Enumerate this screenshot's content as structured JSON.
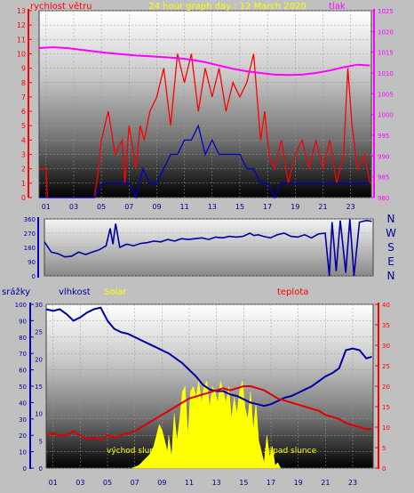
{
  "chart_data": [
    {
      "type": "line",
      "title": "24 hour graph day : 12 March 2020",
      "ylabel_left": "rychlost větru",
      "ylabel_right": "tlak",
      "x_tick_labels": [
        "01",
        "03",
        "05",
        "07",
        "09",
        "11",
        "13",
        "15",
        "17",
        "19",
        "21",
        "23"
      ],
      "y_left_ticks": [
        0,
        1,
        2,
        3,
        4,
        5,
        6,
        7,
        8,
        9,
        10,
        11,
        12,
        13
      ],
      "y_left_lim": [
        0,
        13
      ],
      "y_right_ticks": [
        980,
        985,
        990,
        995,
        1000,
        1005,
        1010,
        1015,
        1020,
        1025
      ],
      "y_right_lim": [
        980,
        1025
      ],
      "series": [
        {
          "role": "wind_gust",
          "color": "#ff0000",
          "x": [
            0.0,
            0.5,
            0.6,
            1.0,
            2.0,
            3.0,
            4.0,
            4.3,
            4.5,
            5.0,
            5.5,
            6.0,
            6.2,
            6.5,
            7.0,
            7.3,
            7.6,
            8.0,
            8.5,
            9.0,
            9.5,
            10.0,
            10.5,
            11.0,
            11.5,
            12.0,
            12.5,
            13.0,
            13.5,
            14.0,
            14.5,
            15.0,
            15.5,
            16.0,
            16.3,
            16.6,
            17.0,
            17.5,
            18.0,
            18.5,
            19.0,
            19.5,
            20.0,
            20.5,
            21.0,
            21.5,
            22.0,
            22.3,
            22.6,
            23.0,
            23.5,
            23.9
          ],
          "values": [
            2,
            2,
            0,
            0,
            0,
            0,
            0,
            2,
            4,
            6,
            3,
            4,
            1,
            5,
            2,
            5,
            4,
            6,
            7,
            9,
            5,
            10,
            8,
            10,
            6,
            9,
            7,
            9,
            6,
            8,
            7,
            8,
            10,
            4,
            6,
            3,
            2,
            4,
            1,
            3,
            4,
            2,
            4,
            2,
            4,
            1,
            3,
            9,
            5,
            2,
            3,
            1
          ]
        },
        {
          "role": "wind_average",
          "color": "#0000c8",
          "x": [
            0.0,
            1.0,
            2.0,
            3.0,
            4.0,
            4.6,
            5.0,
            5.5,
            6.0,
            6.5,
            7.0,
            7.5,
            8.0,
            8.5,
            9.0,
            9.5,
            10.0,
            10.5,
            11.0,
            11.5,
            12.0,
            12.5,
            13.0,
            13.5,
            14.0,
            14.5,
            15.0,
            15.5,
            16.0,
            16.5,
            17.0,
            17.5,
            18.0,
            18.5,
            19.0,
            19.5,
            20.0,
            20.5,
            21.0,
            21.5,
            22.0,
            22.5,
            23.0,
            23.5,
            23.9
          ],
          "values": [
            0,
            0,
            0,
            0,
            0,
            1,
            1,
            1,
            1,
            1,
            0,
            2,
            1,
            1,
            2,
            3,
            3,
            4,
            4,
            5,
            3,
            4,
            3,
            3,
            3,
            3,
            2,
            2,
            1,
            1,
            0,
            1,
            1,
            1,
            1,
            1,
            1,
            1,
            1,
            1,
            1,
            1,
            1,
            1,
            1
          ]
        },
        {
          "role": "pressure",
          "color": "#ff00ff",
          "axis": "right",
          "x": [
            0,
            1,
            2,
            3,
            4,
            5,
            6,
            7,
            8,
            9,
            10,
            11,
            12,
            13,
            14,
            15,
            16,
            17,
            18,
            19,
            20,
            21,
            22,
            23,
            23.9
          ],
          "values": [
            1016,
            1016.2,
            1016,
            1015.6,
            1015.2,
            1014.8,
            1014.5,
            1014.2,
            1014,
            1013.8,
            1013.6,
            1013.2,
            1012.6,
            1011.8,
            1011,
            1010.4,
            1010,
            1009.6,
            1009.5,
            1009.6,
            1010,
            1010.6,
            1011.4,
            1012,
            1011.8
          ]
        }
      ]
    },
    {
      "type": "line",
      "y_ticks": [
        0,
        90,
        180,
        270,
        360
      ],
      "y_lim": [
        0,
        360
      ],
      "compass_labels": [
        "N",
        "W",
        "S",
        "E",
        "N"
      ],
      "series": [
        {
          "role": "wind_direction",
          "color": "#0000a0",
          "x": [
            0.0,
            0.5,
            1.0,
            1.5,
            2.0,
            2.5,
            3.0,
            3.5,
            4.0,
            4.5,
            4.8,
            5.0,
            5.2,
            5.5,
            6.0,
            6.5,
            7.0,
            7.5,
            8.0,
            8.5,
            9.0,
            9.5,
            10.0,
            10.5,
            11.0,
            11.5,
            12.0,
            12.5,
            13.0,
            13.5,
            14.0,
            14.5,
            15.0,
            15.3,
            15.6,
            16.0,
            16.5,
            17.0,
            17.5,
            18.0,
            18.5,
            19.0,
            19.5,
            20.0,
            20.5,
            20.8,
            21.0,
            21.3,
            21.6,
            22.0,
            22.3,
            22.6,
            23.0,
            23.5,
            23.9
          ],
          "values": [
            215,
            150,
            140,
            120,
            125,
            150,
            135,
            150,
            165,
            190,
            300,
            200,
            330,
            180,
            200,
            190,
            205,
            210,
            220,
            215,
            230,
            220,
            235,
            230,
            235,
            240,
            230,
            245,
            240,
            250,
            245,
            250,
            270,
            255,
            260,
            250,
            240,
            260,
            270,
            250,
            245,
            260,
            240,
            265,
            270,
            0,
            340,
            30,
            350,
            20,
            360,
            0,
            340,
            350,
            345
          ]
        }
      ]
    },
    {
      "type": "area",
      "ylabel_left": "srážky",
      "ylabel_mid": "vlhkost",
      "ylabel_solar": "Solar",
      "ylabel_right": "teplota",
      "sunrise_label": "východ slunce",
      "sunset_label": "západ slunce",
      "x_tick_labels": [
        "01",
        "03",
        "05",
        "07",
        "09",
        "11",
        "13",
        "15",
        "17",
        "19",
        "21",
        "23"
      ],
      "y_left_ticks": [
        0,
        10,
        20,
        30,
        40,
        50,
        60,
        70,
        80,
        90,
        100
      ],
      "y_left_lim": [
        0,
        100
      ],
      "y_mid_ticks": [
        0,
        5,
        10,
        15,
        20,
        25,
        30
      ],
      "y_mid_lim": [
        0,
        30
      ],
      "y_right_ticks": [
        0,
        5,
        10,
        15,
        20,
        25,
        30,
        35,
        40
      ],
      "y_right_lim": [
        0,
        40
      ],
      "series": [
        {
          "role": "humidity",
          "color": "#0000a0",
          "axis": "left",
          "x": [
            0,
            0.5,
            1,
            1.5,
            2,
            2.5,
            3,
            3.5,
            4,
            4.5,
            5,
            5.5,
            6,
            6.5,
            7,
            7.5,
            8,
            8.5,
            9,
            9.5,
            10,
            10.5,
            11,
            11.5,
            12,
            12.5,
            13,
            13.5,
            14,
            14.5,
            15,
            15.5,
            16,
            16.5,
            17,
            17.5,
            18,
            18.5,
            19,
            19.5,
            20,
            20.5,
            21,
            21.5,
            22,
            22.5,
            23,
            23.5,
            23.9
          ],
          "values": [
            97,
            96,
            97,
            94,
            90,
            92,
            95,
            97,
            98,
            90,
            85,
            83,
            82,
            80,
            78,
            76,
            74,
            72,
            70,
            67,
            64,
            60,
            56,
            51,
            48,
            47,
            47,
            45,
            44,
            42,
            40,
            39,
            38,
            39,
            41,
            43,
            44,
            46,
            48,
            50,
            53,
            56,
            58,
            61,
            72,
            73,
            72,
            67,
            68
          ]
        },
        {
          "role": "temperature",
          "color": "#e00000",
          "axis": "right",
          "x": [
            0,
            0.5,
            1,
            1.5,
            2,
            2.5,
            3,
            3.5,
            4,
            4.5,
            5,
            5.5,
            6,
            6.5,
            7,
            7.5,
            8,
            8.5,
            9,
            9.5,
            10,
            10.5,
            11,
            11.5,
            12,
            12.5,
            13,
            13.5,
            14,
            14.5,
            15,
            15.5,
            16,
            16.5,
            17,
            17.5,
            18,
            18.5,
            19,
            19.5,
            20,
            20.5,
            21,
            21.5,
            22,
            22.5,
            23,
            23.5,
            23.9
          ],
          "values": [
            8,
            8.5,
            8,
            8,
            9,
            8,
            7,
            7.5,
            7,
            8,
            7.5,
            8,
            8.5,
            9,
            10,
            11,
            12,
            13,
            14,
            15,
            16,
            17,
            17.5,
            18,
            18.5,
            19,
            19.5,
            19,
            19.5,
            20,
            20,
            19.5,
            19,
            18,
            17,
            16.5,
            16,
            15.5,
            15,
            14.5,
            14,
            13,
            12.5,
            12,
            11,
            10.5,
            10,
            9.5,
            9.5
          ]
        },
        {
          "role": "solar",
          "color": "#ffff00",
          "axis": "mid",
          "x": [
            6.3,
            6.8,
            7.2,
            7.6,
            7.9,
            8.1,
            8.3,
            8.5,
            8.7,
            8.9,
            9.0,
            9.2,
            9.4,
            9.6,
            9.8,
            10.0,
            10.2,
            10.4,
            10.6,
            10.8,
            11.0,
            11.2,
            11.4,
            11.6,
            11.8,
            12.0,
            12.2,
            12.4,
            12.6,
            12.8,
            13.0,
            13.2,
            13.4,
            13.6,
            13.8,
            14.0,
            14.2,
            14.4,
            14.6,
            14.8,
            15.0,
            15.2,
            15.4,
            15.6,
            15.8,
            16.0,
            16.2,
            16.4,
            16.6,
            16.8,
            17.0,
            17.2
          ],
          "values": [
            0,
            0.5,
            1.5,
            2.5,
            4,
            6,
            8,
            7,
            5,
            3,
            6,
            2,
            10,
            5,
            9,
            14,
            15,
            6,
            14,
            15,
            13,
            16,
            12,
            15,
            16,
            11,
            15,
            14,
            12,
            16,
            14,
            12,
            15,
            9,
            13,
            10,
            14,
            16,
            11,
            9,
            14,
            7,
            12,
            5,
            3,
            1,
            6,
            2,
            4,
            0.5,
            1,
            0
          ]
        }
      ]
    }
  ],
  "colors": {
    "wind_gust": "#ff0000",
    "wind_average": "#0000c8",
    "pressure": "#ff00ff",
    "pressure_axis": "#ff00ff",
    "title": "#ffff00",
    "temperature_axis": "#ff0000",
    "humidity_axis": "#0000a0",
    "solar": "#ffff00",
    "background": "#c0c0c0"
  }
}
